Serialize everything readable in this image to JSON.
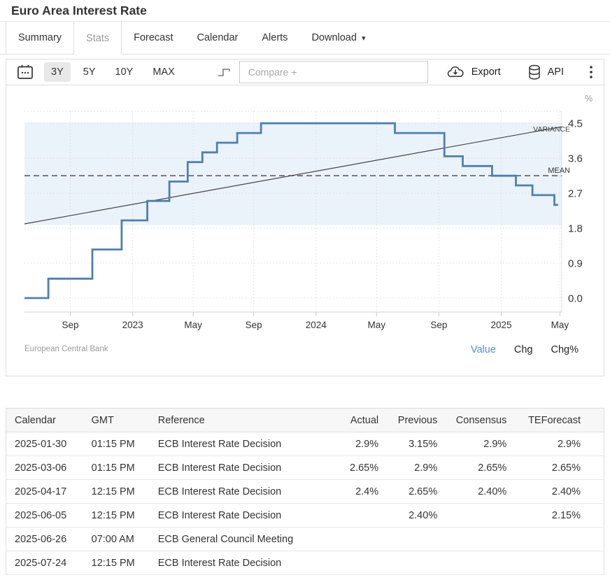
{
  "header": {
    "title": "Euro Area Interest Rate"
  },
  "tabs": {
    "items": [
      {
        "label": "Summary",
        "boxed": true
      },
      {
        "label": "Stats",
        "boxed": true,
        "active": true
      },
      {
        "label": "Forecast"
      },
      {
        "label": "Calendar"
      },
      {
        "label": "Alerts"
      },
      {
        "label": "Download",
        "caret": true
      }
    ]
  },
  "toolbar": {
    "calendar_icon": "calendar-icon",
    "ranges": [
      {
        "label": "3Y",
        "active": true
      },
      {
        "label": "5Y"
      },
      {
        "label": "10Y"
      },
      {
        "label": "MAX"
      }
    ],
    "chart_type_icon": "step-line-icon",
    "compare_placeholder": "Compare +",
    "export_label": "Export",
    "export_icon": "cloud-download-icon",
    "api_label": "API",
    "api_icon": "database-icon",
    "menu_icon": "kebab-menu-icon"
  },
  "chart_data": {
    "type": "line",
    "line_style": "step",
    "title": "Euro Area Interest Rate",
    "y_axis_unit": "%",
    "source": "European Central Bank",
    "xlim": [
      2022.45,
      2025.38
    ],
    "ylim": [
      -0.36,
      4.81
    ],
    "yticks": [
      0.0,
      0.9,
      1.8,
      2.7,
      3.6,
      4.5
    ],
    "xticks": [
      {
        "pos": 2022.7,
        "label": "Sep"
      },
      {
        "pos": 2023.04,
        "label": "2023"
      },
      {
        "pos": 2023.37,
        "label": "May"
      },
      {
        "pos": 2023.7,
        "label": "Sep"
      },
      {
        "pos": 2024.04,
        "label": "2024"
      },
      {
        "pos": 2024.37,
        "label": "May"
      },
      {
        "pos": 2024.71,
        "label": "Sep"
      },
      {
        "pos": 2025.05,
        "label": "2025"
      },
      {
        "pos": 2025.37,
        "label": "May"
      }
    ],
    "series": [
      {
        "name": "Euro Area Interest Rate",
        "points": [
          [
            2022.45,
            0.0
          ],
          [
            2022.58,
            0.5
          ],
          [
            2022.82,
            1.25
          ],
          [
            2022.98,
            2.0
          ],
          [
            2023.12,
            2.5
          ],
          [
            2023.24,
            3.0
          ],
          [
            2023.34,
            3.5
          ],
          [
            2023.42,
            3.75
          ],
          [
            2023.5,
            4.0
          ],
          [
            2023.61,
            4.25
          ],
          [
            2023.74,
            4.5
          ],
          [
            2024.47,
            4.25
          ],
          [
            2024.74,
            3.65
          ],
          [
            2024.84,
            3.4
          ],
          [
            2025.0,
            3.15
          ],
          [
            2025.13,
            2.9
          ],
          [
            2025.22,
            2.65
          ],
          [
            2025.34,
            2.4
          ],
          [
            2025.36,
            2.4
          ]
        ]
      }
    ],
    "mean": 3.15,
    "mean_label": "MEAN",
    "variance_label": "VARIANCE",
    "variance_band": [
      1.88,
      4.52
    ],
    "trend_line": {
      "start": 1.91,
      "end": 4.41
    },
    "legend": [
      {
        "label": "Value",
        "active": true
      },
      {
        "label": "Chg"
      },
      {
        "label": "Chg%"
      }
    ],
    "colors": {
      "line": "#4d80b3",
      "band": "#ebf3fa",
      "trend_line": "#444444",
      "mean_line": "#333333",
      "accent_blue": "#4a90e2"
    }
  },
  "table": {
    "columns": [
      "Calendar",
      "GMT",
      "Reference",
      "Actual",
      "Previous",
      "Consensus",
      "TEForecast"
    ],
    "rows": [
      [
        "2025-01-30",
        "01:15 PM",
        "ECB Interest Rate Decision",
        "2.9%",
        "3.15%",
        "2.9%",
        "2.9%"
      ],
      [
        "2025-03-06",
        "01:15 PM",
        "ECB Interest Rate Decision",
        "2.65%",
        "2.9%",
        "2.65%",
        "2.65%"
      ],
      [
        "2025-04-17",
        "12:15 PM",
        "ECB Interest Rate Decision",
        "2.4%",
        "2.65%",
        "2.40%",
        "2.40%"
      ],
      [
        "2025-06-05",
        "12:15 PM",
        "ECB Interest Rate Decision",
        "",
        "2.40%",
        "",
        "2.15%"
      ],
      [
        "2025-06-26",
        "07:00 AM",
        "ECB General Council Meeting",
        "",
        "",
        "",
        ""
      ],
      [
        "2025-07-24",
        "12:15 PM",
        "ECB Interest Rate Decision",
        "",
        "",
        "",
        ""
      ]
    ]
  }
}
